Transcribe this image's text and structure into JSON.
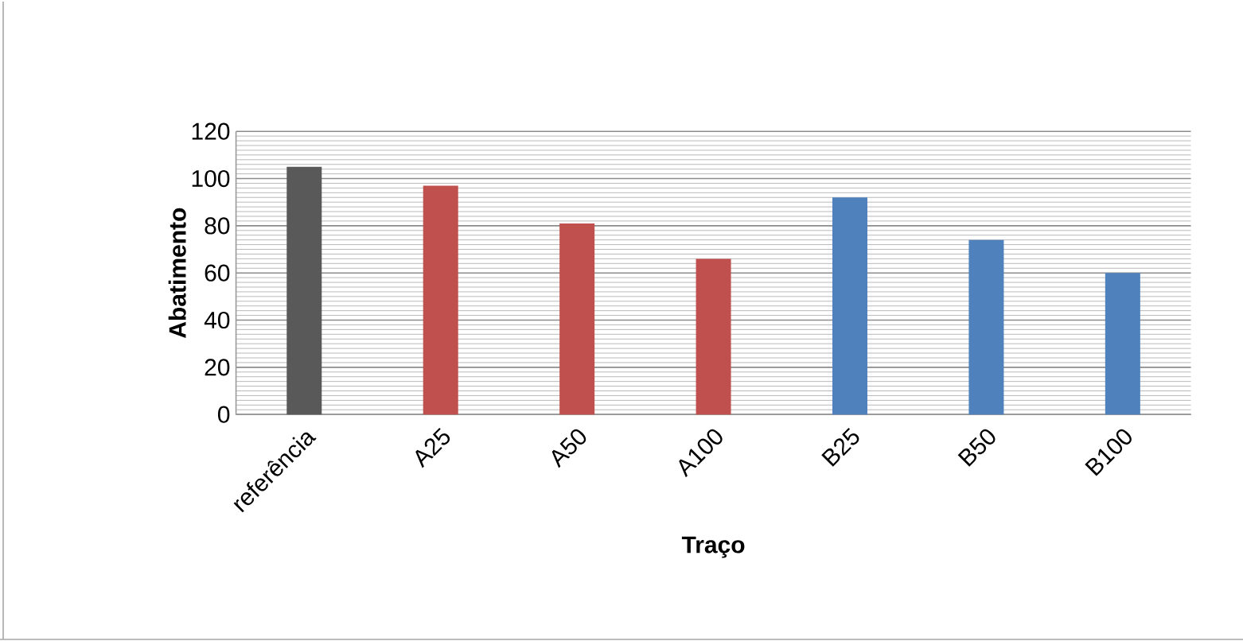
{
  "chart_data": {
    "type": "bar",
    "xlabel": "Traço",
    "ylabel": "Abatimento",
    "categories": [
      "referência",
      "A25",
      "A50",
      "A100",
      "B25",
      "B50",
      "B100"
    ],
    "values": [
      105,
      97,
      81,
      66,
      92,
      74,
      60
    ],
    "colors": [
      "#595959",
      "#c0504d",
      "#c0504d",
      "#c0504d",
      "#4f81bd",
      "#4f81bd",
      "#4f81bd"
    ],
    "ylim": [
      0,
      120
    ],
    "yticks": [
      0,
      20,
      40,
      60,
      80,
      100,
      120
    ],
    "grid": "y"
  }
}
